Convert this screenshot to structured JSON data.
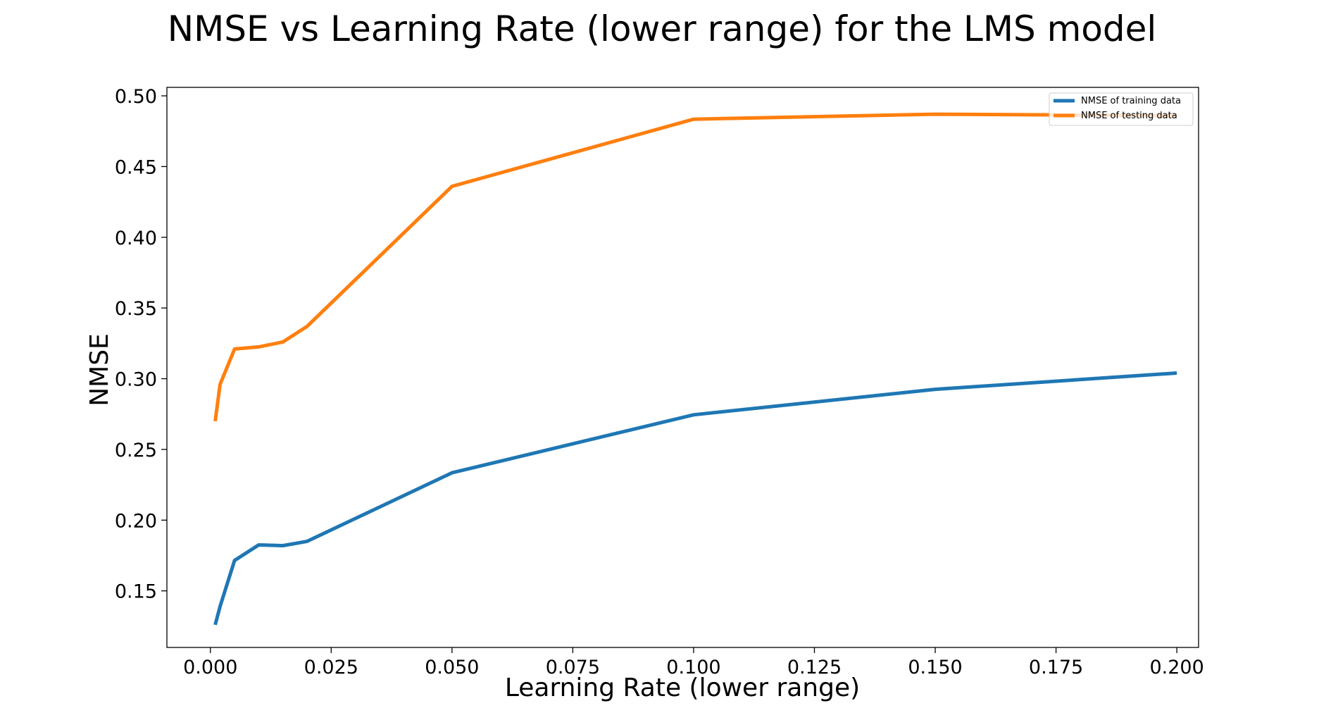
{
  "chart_data": {
    "type": "line",
    "title": "NMSE vs Learning Rate (lower range) for the LMS model",
    "xlabel": "Learning Rate (lower range)",
    "ylabel": "NMSE",
    "xlim": [
      -0.009,
      0.2045
    ],
    "ylim": [
      0.11,
      0.506
    ],
    "xticks": [
      0.0,
      0.025,
      0.05,
      0.075,
      0.1,
      0.125,
      0.15,
      0.175,
      0.2
    ],
    "xtick_labels": [
      "0.000",
      "0.025",
      "0.050",
      "0.075",
      "0.100",
      "0.125",
      "0.150",
      "0.175",
      "0.200"
    ],
    "yticks": [
      0.15,
      0.2,
      0.25,
      0.3,
      0.35,
      0.4,
      0.45,
      0.5
    ],
    "ytick_labels": [
      "0.15",
      "0.20",
      "0.25",
      "0.30",
      "0.35",
      "0.40",
      "0.45",
      "0.50"
    ],
    "grid": false,
    "legend_position": "upper right",
    "x": [
      0.001,
      0.002,
      0.005,
      0.01,
      0.015,
      0.02,
      0.05,
      0.1,
      0.15,
      0.2
    ],
    "series": [
      {
        "name": "NMSE of training data",
        "color": "#1f77b4",
        "values": [
          0.126,
          0.139,
          0.1715,
          0.1825,
          0.182,
          0.185,
          0.2335,
          0.2745,
          0.2925,
          0.304
        ]
      },
      {
        "name": "NMSE of testing data",
        "color": "#ff7f0e",
        "values": [
          0.27,
          0.296,
          0.321,
          0.3225,
          0.326,
          0.337,
          0.436,
          0.4835,
          0.487,
          0.486
        ]
      }
    ]
  }
}
